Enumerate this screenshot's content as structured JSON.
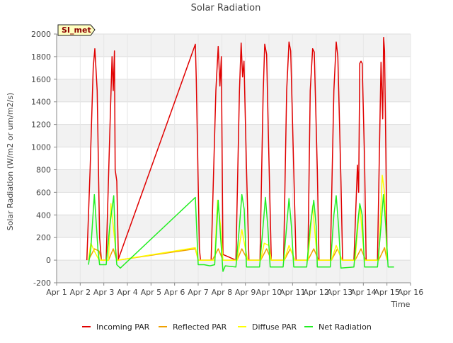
{
  "chart_data": {
    "type": "line",
    "title": "Solar Radiation",
    "xlabel": "Time",
    "ylabel": "Solar Radiation (W/m2 or um/m2/s)",
    "xlim": [
      1,
      16
    ],
    "ylim": [
      -200,
      2000
    ],
    "xticks": [
      {
        "v": 1,
        "label": "Apr 1"
      },
      {
        "v": 2,
        "label": "Apr 2"
      },
      {
        "v": 3,
        "label": "Apr 3"
      },
      {
        "v": 4,
        "label": "Apr 4"
      },
      {
        "v": 5,
        "label": "Apr 5"
      },
      {
        "v": 6,
        "label": "Apr 6"
      },
      {
        "v": 7,
        "label": "Apr 7"
      },
      {
        "v": 8,
        "label": "Apr 8"
      },
      {
        "v": 9,
        "label": "Apr 9"
      },
      {
        "v": 10,
        "label": "Apr 10"
      },
      {
        "v": 11,
        "label": "Apr 11"
      },
      {
        "v": 12,
        "label": "Apr 12"
      },
      {
        "v": 13,
        "label": "Apr 13"
      },
      {
        "v": 14,
        "label": "Apr 14"
      },
      {
        "v": 15,
        "label": "Apr 15"
      },
      {
        "v": 16,
        "label": "Apr 16"
      }
    ],
    "yticks": [
      {
        "v": -200,
        "label": "-200"
      },
      {
        "v": 0,
        "label": "0"
      },
      {
        "v": 200,
        "label": "200"
      },
      {
        "v": 400,
        "label": "400"
      },
      {
        "v": 600,
        "label": "600"
      },
      {
        "v": 800,
        "label": "800"
      },
      {
        "v": 1000,
        "label": "1000"
      },
      {
        "v": 1200,
        "label": "1200"
      },
      {
        "v": 1400,
        "label": "1400"
      },
      {
        "v": 1600,
        "label": "1600"
      },
      {
        "v": 1800,
        "label": "1800"
      },
      {
        "v": 2000,
        "label": "2000"
      }
    ],
    "badge": "SI_met",
    "legend_position": "bottom",
    "series": [
      {
        "name": "Incoming PAR",
        "color": "#e00000",
        "points": [
          [
            2.28,
            0
          ],
          [
            2.42,
            800
          ],
          [
            2.55,
            1700
          ],
          [
            2.62,
            1870
          ],
          [
            2.72,
            1500
          ],
          [
            2.82,
            200
          ],
          [
            2.9,
            0
          ],
          [
            3.1,
            0
          ],
          [
            3.25,
            1100
          ],
          [
            3.35,
            1800
          ],
          [
            3.4,
            1500
          ],
          [
            3.45,
            1850
          ],
          [
            3.48,
            800
          ],
          [
            3.55,
            700
          ],
          [
            3.62,
            0
          ],
          [
            3.6,
            0
          ],
          [
            6.88,
            1910
          ],
          [
            6.92,
            1600
          ],
          [
            7.05,
            100
          ],
          [
            7.1,
            0
          ],
          [
            7.55,
            0
          ],
          [
            7.75,
            1500
          ],
          [
            7.85,
            1890
          ],
          [
            7.92,
            1540
          ],
          [
            7.98,
            1800
          ],
          [
            8.05,
            50
          ],
          [
            8.6,
            0
          ],
          [
            8.75,
            1500
          ],
          [
            8.82,
            1920
          ],
          [
            8.88,
            1620
          ],
          [
            8.94,
            1760
          ],
          [
            9.05,
            800
          ],
          [
            9.15,
            0
          ],
          [
            9.62,
            0
          ],
          [
            9.75,
            1450
          ],
          [
            9.82,
            1910
          ],
          [
            9.9,
            1820
          ],
          [
            9.97,
            1150
          ],
          [
            10.1,
            0
          ],
          [
            10.62,
            0
          ],
          [
            10.75,
            1500
          ],
          [
            10.85,
            1930
          ],
          [
            10.92,
            1850
          ],
          [
            11.05,
            800
          ],
          [
            11.15,
            0
          ],
          [
            11.65,
            0
          ],
          [
            11.75,
            1500
          ],
          [
            11.85,
            1870
          ],
          [
            11.92,
            1840
          ],
          [
            12.05,
            800
          ],
          [
            12.12,
            0
          ],
          [
            12.6,
            0
          ],
          [
            12.75,
            1500
          ],
          [
            12.85,
            1930
          ],
          [
            12.92,
            1800
          ],
          [
            13.05,
            700
          ],
          [
            13.12,
            0
          ],
          [
            13.6,
            0
          ],
          [
            13.75,
            840
          ],
          [
            13.8,
            600
          ],
          [
            13.85,
            1740
          ],
          [
            13.9,
            1760
          ],
          [
            13.95,
            1740
          ],
          [
            14.05,
            900
          ],
          [
            14.12,
            0
          ],
          [
            14.6,
            0
          ],
          [
            14.75,
            1750
          ],
          [
            14.82,
            1250
          ],
          [
            14.86,
            1970
          ],
          [
            14.9,
            1850
          ],
          [
            14.95,
            1030
          ],
          [
            15.0,
            100
          ]
        ]
      },
      {
        "name": "Reflected PAR",
        "color": "#f0a000",
        "points": [
          [
            2.35,
            0
          ],
          [
            2.6,
            100
          ],
          [
            2.8,
            80
          ],
          [
            2.9,
            0
          ],
          [
            3.2,
            0
          ],
          [
            3.4,
            100
          ],
          [
            3.55,
            0
          ],
          [
            3.6,
            0
          ],
          [
            6.88,
            100
          ],
          [
            7.0,
            0
          ],
          [
            7.6,
            0
          ],
          [
            7.85,
            100
          ],
          [
            8.05,
            0
          ],
          [
            8.65,
            0
          ],
          [
            8.85,
            100
          ],
          [
            9.1,
            0
          ],
          [
            9.65,
            0
          ],
          [
            9.9,
            100
          ],
          [
            10.1,
            0
          ],
          [
            10.65,
            0
          ],
          [
            10.9,
            100
          ],
          [
            11.1,
            0
          ],
          [
            11.65,
            0
          ],
          [
            11.9,
            100
          ],
          [
            12.1,
            0
          ],
          [
            12.65,
            0
          ],
          [
            12.9,
            100
          ],
          [
            13.1,
            0
          ],
          [
            13.65,
            0
          ],
          [
            13.9,
            100
          ],
          [
            14.1,
            0
          ],
          [
            14.65,
            0
          ],
          [
            14.9,
            110
          ],
          [
            15.0,
            0
          ]
        ]
      },
      {
        "name": "Diffuse PAR",
        "color": "#ffff00",
        "points": [
          [
            2.35,
            0
          ],
          [
            2.45,
            150
          ],
          [
            2.6,
            80
          ],
          [
            2.8,
            0
          ],
          [
            3.2,
            0
          ],
          [
            3.3,
            500
          ],
          [
            3.45,
            200
          ],
          [
            3.55,
            0
          ],
          [
            3.6,
            0
          ],
          [
            6.88,
            110
          ],
          [
            7.0,
            0
          ],
          [
            7.7,
            0
          ],
          [
            7.82,
            530
          ],
          [
            7.95,
            300
          ],
          [
            8.05,
            0
          ],
          [
            8.65,
            0
          ],
          [
            8.85,
            270
          ],
          [
            9.0,
            100
          ],
          [
            9.1,
            0
          ],
          [
            9.65,
            0
          ],
          [
            9.8,
            150
          ],
          [
            10.0,
            130
          ],
          [
            10.1,
            0
          ],
          [
            10.65,
            0
          ],
          [
            10.85,
            130
          ],
          [
            11.1,
            0
          ],
          [
            11.65,
            0
          ],
          [
            11.85,
            480
          ],
          [
            12.05,
            0
          ],
          [
            12.65,
            0
          ],
          [
            12.85,
            130
          ],
          [
            13.1,
            0
          ],
          [
            13.65,
            0
          ],
          [
            13.85,
            490
          ],
          [
            14.05,
            0
          ],
          [
            14.65,
            0
          ],
          [
            14.8,
            750
          ],
          [
            14.9,
            600
          ],
          [
            15.0,
            0
          ]
        ]
      },
      {
        "name": "Net Radiation",
        "color": "#22ee22",
        "points": [
          [
            2.35,
            -40
          ],
          [
            2.45,
            100
          ],
          [
            2.6,
            580
          ],
          [
            2.75,
            100
          ],
          [
            2.82,
            -40
          ],
          [
            3.1,
            -40
          ],
          [
            3.25,
            300
          ],
          [
            3.42,
            570
          ],
          [
            3.5,
            100
          ],
          [
            3.55,
            -40
          ],
          [
            3.7,
            -70
          ],
          [
            6.88,
            555
          ],
          [
            7.0,
            -40
          ],
          [
            7.25,
            -40
          ],
          [
            7.5,
            -50
          ],
          [
            7.7,
            -40
          ],
          [
            7.85,
            530
          ],
          [
            7.95,
            200
          ],
          [
            8.05,
            -100
          ],
          [
            8.15,
            -50
          ],
          [
            8.6,
            -60
          ],
          [
            8.75,
            300
          ],
          [
            8.85,
            580
          ],
          [
            8.95,
            450
          ],
          [
            9.05,
            -60
          ],
          [
            9.6,
            -60
          ],
          [
            9.75,
            300
          ],
          [
            9.85,
            555
          ],
          [
            9.95,
            300
          ],
          [
            10.05,
            -60
          ],
          [
            10.6,
            -60
          ],
          [
            10.75,
            300
          ],
          [
            10.85,
            545
          ],
          [
            10.95,
            300
          ],
          [
            11.05,
            -60
          ],
          [
            11.6,
            -60
          ],
          [
            11.75,
            300
          ],
          [
            11.9,
            530
          ],
          [
            12.0,
            300
          ],
          [
            12.05,
            -60
          ],
          [
            12.6,
            -60
          ],
          [
            12.75,
            400
          ],
          [
            12.85,
            570
          ],
          [
            12.95,
            300
          ],
          [
            13.05,
            -70
          ],
          [
            13.6,
            -60
          ],
          [
            13.75,
            300
          ],
          [
            13.85,
            500
          ],
          [
            13.95,
            400
          ],
          [
            14.05,
            -60
          ],
          [
            14.6,
            -60
          ],
          [
            14.75,
            300
          ],
          [
            14.85,
            580
          ],
          [
            14.95,
            300
          ],
          [
            15.05,
            -60
          ],
          [
            15.3,
            -60
          ]
        ]
      }
    ]
  }
}
